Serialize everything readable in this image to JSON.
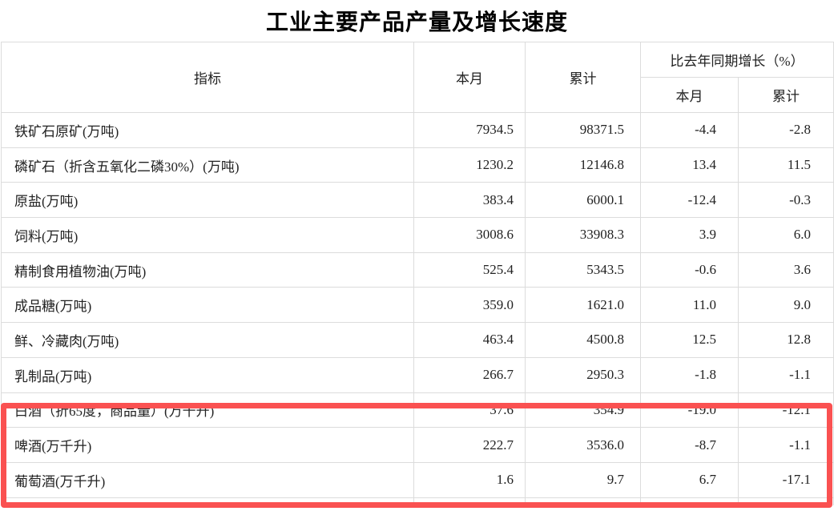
{
  "title": "工业主要产品产量及增长速度",
  "table": {
    "headers": {
      "indicator": "指标",
      "month": "本月",
      "cumulative": "累计",
      "growth_group": "比去年同期增长（%）",
      "growth_month": "本月",
      "growth_cumulative": "累计"
    },
    "rows": [
      {
        "indicator": "铁矿石原矿(万吨)",
        "month": "7934.5",
        "cumulative": "98371.5",
        "growth_month": "-4.4",
        "growth_cumulative": "-2.8"
      },
      {
        "indicator": "磷矿石（折含五氧化二磷30%）(万吨)",
        "month": "1230.2",
        "cumulative": "12146.8",
        "growth_month": "13.4",
        "growth_cumulative": "11.5"
      },
      {
        "indicator": "原盐(万吨)",
        "month": "383.4",
        "cumulative": "6000.1",
        "growth_month": "-12.4",
        "growth_cumulative": "-0.3"
      },
      {
        "indicator": "饲料(万吨)",
        "month": "3008.6",
        "cumulative": "33908.3",
        "growth_month": "3.9",
        "growth_cumulative": "6.0"
      },
      {
        "indicator": "精制食用植物油(万吨)",
        "month": "525.4",
        "cumulative": "5343.5",
        "growth_month": "-0.6",
        "growth_cumulative": "3.6"
      },
      {
        "indicator": "成品糖(万吨)",
        "month": "359.0",
        "cumulative": "1621.0",
        "growth_month": "11.0",
        "growth_cumulative": "9.0"
      },
      {
        "indicator": "鲜、冷藏肉(万吨)",
        "month": "463.4",
        "cumulative": "4500.8",
        "growth_month": "12.5",
        "growth_cumulative": "12.8"
      },
      {
        "indicator": "乳制品(万吨)",
        "month": "266.7",
        "cumulative": "2950.3",
        "growth_month": "-1.8",
        "growth_cumulative": "-1.1"
      },
      {
        "indicator": "白酒（折65度，商品量）(万千升)",
        "month": "37.6",
        "cumulative": "354.9",
        "growth_month": "-19.0",
        "growth_cumulative": "-12.1"
      },
      {
        "indicator": "啤酒(万千升)",
        "month": "222.7",
        "cumulative": "3536.0",
        "growth_month": "-8.7",
        "growth_cumulative": "-1.1"
      },
      {
        "indicator": "葡萄酒(万千升)",
        "month": "1.6",
        "cumulative": "9.7",
        "growth_month": "6.7",
        "growth_cumulative": "-17.1"
      }
    ]
  },
  "highlight": {
    "color": "#fa5151"
  },
  "colors": {
    "grid_line": "#dcdcdc",
    "text": "#222222",
    "background": "#ffffff"
  }
}
